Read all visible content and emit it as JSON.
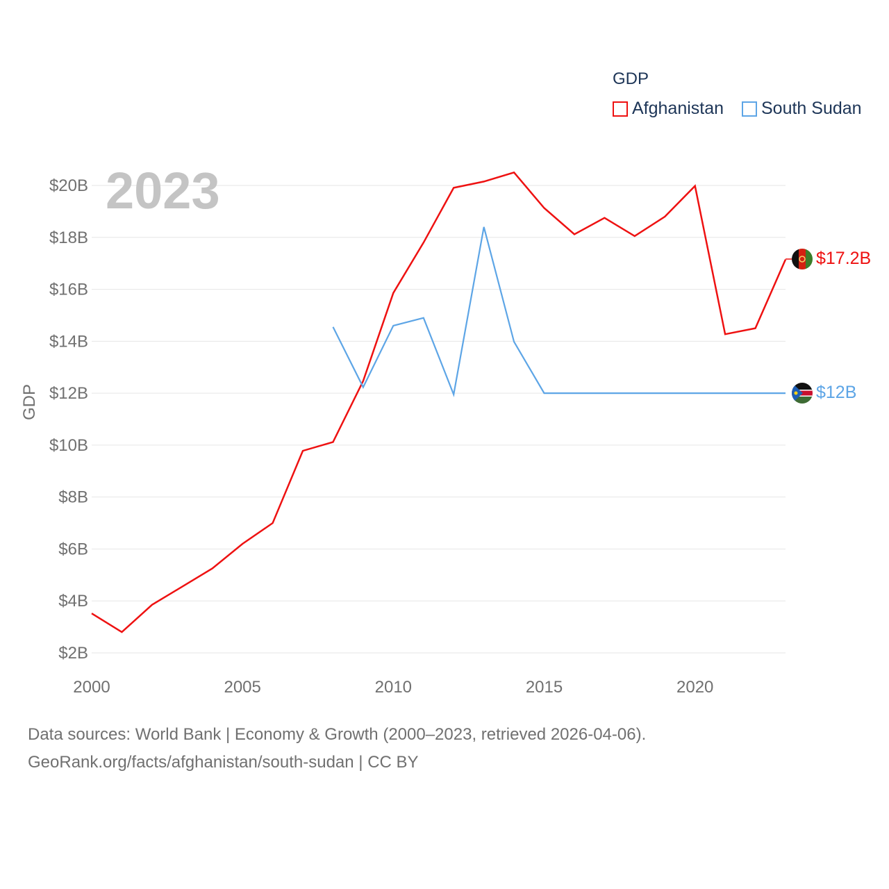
{
  "legend": {
    "title": "GDP",
    "items": [
      {
        "label": "Afghanistan",
        "color": "#ee1111"
      },
      {
        "label": "South Sudan",
        "color": "#5da5e6"
      }
    ]
  },
  "year_label": "2023",
  "end_labels": {
    "afghanistan": {
      "text": "$17.2B",
      "color": "#ee1111"
    },
    "south_sudan": {
      "text": "$12B",
      "color": "#5da5e6"
    }
  },
  "footer": {
    "line1": "Data sources: World Bank | Economy & Growth (2000–2023, retrieved 2026-04-06).",
    "line2": "GeoRank.org/facts/afghanistan/south-sudan | CC BY"
  },
  "chart_data": {
    "type": "line",
    "title": "",
    "xlabel": "",
    "ylabel": "GDP",
    "xlim": [
      2000,
      2023
    ],
    "ylim": [
      1.5,
      21.8
    ],
    "x_ticks": [
      2000,
      2005,
      2010,
      2015,
      2020
    ],
    "y_ticks": [
      2,
      4,
      6,
      8,
      10,
      12,
      14,
      16,
      18,
      20
    ],
    "y_tick_labels": [
      "$2B",
      "$4B",
      "$6B",
      "$8B",
      "$10B",
      "$12B",
      "$14B",
      "$16B",
      "$18B",
      "$20B"
    ],
    "grid": true,
    "legend_position": "top-right",
    "series": [
      {
        "name": "Afghanistan",
        "color": "#ee1111",
        "x": [
          2000,
          2001,
          2002,
          2003,
          2004,
          2005,
          2006,
          2007,
          2008,
          2009,
          2010,
          2011,
          2012,
          2013,
          2014,
          2015,
          2016,
          2017,
          2018,
          2019,
          2020,
          2021,
          2022,
          2023
        ],
        "values": [
          3.52,
          2.8,
          3.85,
          4.55,
          5.25,
          6.2,
          7.0,
          9.78,
          10.12,
          12.47,
          15.86,
          17.8,
          19.91,
          20.15,
          20.5,
          19.13,
          18.12,
          18.75,
          18.05,
          18.8,
          19.98,
          14.27,
          14.5,
          17.15
        ]
      },
      {
        "name": "South Sudan",
        "color": "#5da5e6",
        "x": [
          2008,
          2009,
          2010,
          2011,
          2012,
          2013,
          2014,
          2015,
          2016,
          2017,
          2018,
          2019,
          2020,
          2021,
          2022,
          2023
        ],
        "values": [
          14.55,
          12.23,
          14.6,
          14.9,
          11.95,
          18.4,
          13.98,
          12.0,
          12.0,
          12.0,
          12.0,
          12.0,
          12.0,
          12.0,
          12.0,
          12.0
        ]
      }
    ]
  }
}
